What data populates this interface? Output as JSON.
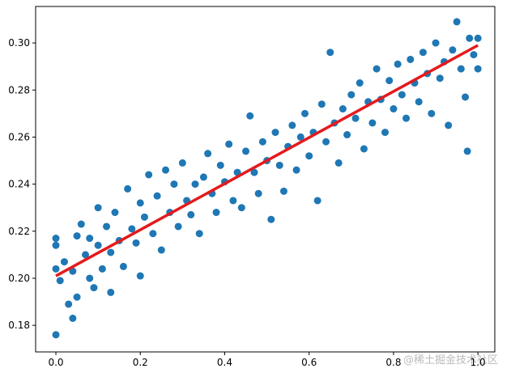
{
  "chart_data": {
    "type": "scatter",
    "color": "#1f77b4",
    "x": [
      0.0,
      0.0,
      0.0,
      0.0,
      0.01,
      0.02,
      0.03,
      0.04,
      0.04,
      0.05,
      0.05,
      0.06,
      0.07,
      0.08,
      0.08,
      0.09,
      0.1,
      0.1,
      0.11,
      0.12,
      0.13,
      0.13,
      0.14,
      0.15,
      0.16,
      0.17,
      0.18,
      0.19,
      0.2,
      0.2,
      0.21,
      0.22,
      0.23,
      0.24,
      0.25,
      0.26,
      0.27,
      0.28,
      0.29,
      0.3,
      0.31,
      0.32,
      0.33,
      0.34,
      0.35,
      0.36,
      0.37,
      0.38,
      0.39,
      0.4,
      0.41,
      0.42,
      0.43,
      0.44,
      0.45,
      0.46,
      0.47,
      0.48,
      0.49,
      0.5,
      0.51,
      0.52,
      0.53,
      0.54,
      0.55,
      0.56,
      0.57,
      0.58,
      0.59,
      0.6,
      0.61,
      0.62,
      0.63,
      0.64,
      0.65,
      0.66,
      0.67,
      0.68,
      0.69,
      0.7,
      0.71,
      0.72,
      0.73,
      0.74,
      0.75,
      0.76,
      0.77,
      0.78,
      0.79,
      0.8,
      0.81,
      0.82,
      0.83,
      0.84,
      0.85,
      0.86,
      0.87,
      0.88,
      0.89,
      0.9,
      0.91,
      0.92,
      0.93,
      0.94,
      0.95,
      0.96,
      0.97,
      0.975,
      0.98,
      0.99,
      1.0,
      1.0
    ],
    "y": [
      0.176,
      0.204,
      0.214,
      0.217,
      0.199,
      0.207,
      0.189,
      0.183,
      0.203,
      0.192,
      0.218,
      0.223,
      0.21,
      0.2,
      0.217,
      0.196,
      0.214,
      0.23,
      0.204,
      0.222,
      0.194,
      0.211,
      0.228,
      0.216,
      0.205,
      0.238,
      0.221,
      0.215,
      0.201,
      0.232,
      0.226,
      0.244,
      0.219,
      0.235,
      0.212,
      0.246,
      0.228,
      0.24,
      0.222,
      0.249,
      0.233,
      0.227,
      0.24,
      0.219,
      0.243,
      0.253,
      0.236,
      0.228,
      0.248,
      0.241,
      0.257,
      0.233,
      0.245,
      0.23,
      0.254,
      0.269,
      0.245,
      0.236,
      0.258,
      0.25,
      0.225,
      0.262,
      0.248,
      0.237,
      0.256,
      0.265,
      0.246,
      0.26,
      0.27,
      0.252,
      0.262,
      0.233,
      0.274,
      0.258,
      0.296,
      0.266,
      0.249,
      0.272,
      0.261,
      0.278,
      0.268,
      0.283,
      0.255,
      0.275,
      0.266,
      0.289,
      0.276,
      0.262,
      0.284,
      0.272,
      0.291,
      0.278,
      0.268,
      0.293,
      0.283,
      0.275,
      0.296,
      0.287,
      0.27,
      0.3,
      0.285,
      0.292,
      0.265,
      0.297,
      0.309,
      0.289,
      0.277,
      0.254,
      0.302,
      0.295,
      0.289,
      0.302
    ],
    "fit": {
      "type": "line",
      "color": "#e41a1c",
      "x": [
        0,
        1
      ],
      "y": [
        0.201,
        0.299
      ]
    },
    "xlim": [
      -0.048,
      1.04
    ],
    "ylim": [
      0.1687,
      0.3155
    ],
    "xticks": [
      {
        "value": 0,
        "label": "0.0"
      },
      {
        "value": 0.2,
        "label": "0.2"
      },
      {
        "value": 0.4,
        "label": "0.4"
      },
      {
        "value": 0.6,
        "label": "0.6"
      },
      {
        "value": 0.8,
        "label": "0.8"
      },
      {
        "value": 1,
        "label": "1.0"
      }
    ],
    "yticks": [
      0.18,
      {
        "value": 0.2,
        "label": "0.20"
      },
      0.22,
      0.24,
      0.26,
      0.28,
      {
        "value": 0.3,
        "label": "0.30"
      }
    ],
    "watermark": "@稀土掘金技术社区"
  }
}
